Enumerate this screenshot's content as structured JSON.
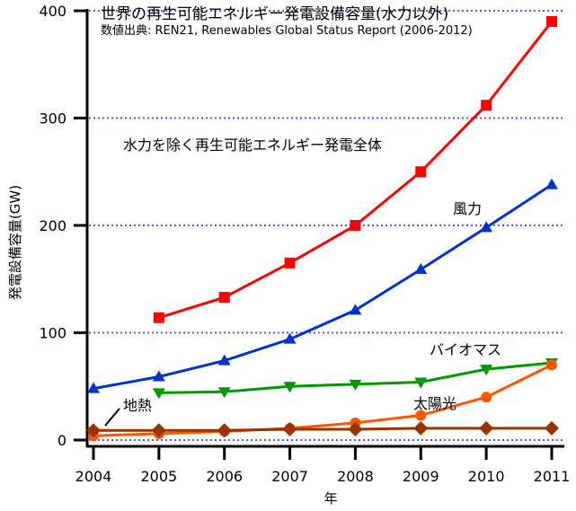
{
  "chart_data": {
    "type": "line",
    "title": "世界の再生可能エネルギー発電設備容量(水力以外)",
    "subtitle": "数値出典: REN21, Renewables Global Status Report (2006-2012)",
    "xlabel": "年",
    "ylabel": "発電設備容量(GW)",
    "xlim": [
      2004,
      2011
    ],
    "ylim": [
      0,
      400
    ],
    "x_ticks": [
      "2004",
      "2005",
      "2006",
      "2007",
      "2008",
      "2009",
      "2010",
      "2011"
    ],
    "y_ticks": [
      "0",
      "100",
      "200",
      "300",
      "400"
    ],
    "grid": "horizontal dotted",
    "series": [
      {
        "name": "水力を除く再生可能エネルギー発電全体",
        "color": "#ff0000",
        "marker": "square",
        "x": [
          2005,
          2006,
          2007,
          2008,
          2009,
          2010,
          2011
        ],
        "values": [
          114,
          133,
          165,
          200,
          250,
          312,
          390
        ]
      },
      {
        "name": "風力",
        "color": "#0033cc",
        "marker": "triangle-up",
        "x": [
          2004,
          2005,
          2006,
          2007,
          2008,
          2009,
          2010,
          2011
        ],
        "values": [
          48,
          59,
          74,
          94,
          121,
          159,
          198,
          238
        ]
      },
      {
        "name": "バイオマス",
        "color": "#009900",
        "marker": "triangle-down",
        "x": [
          2005,
          2006,
          2007,
          2008,
          2009,
          2010,
          2011
        ],
        "values": [
          44,
          45,
          50,
          52,
          54,
          66,
          72
        ]
      },
      {
        "name": "太陽光",
        "color": "#ff5500",
        "marker": "circle",
        "x": [
          2004,
          2005,
          2006,
          2007,
          2008,
          2009,
          2010,
          2011
        ],
        "values": [
          4,
          6,
          8,
          11,
          16,
          23,
          40,
          70
        ]
      },
      {
        "name": "地熱",
        "color": "#993300",
        "marker": "diamond",
        "x": [
          2004,
          2005,
          2006,
          2007,
          2008,
          2009,
          2010,
          2011
        ],
        "values": [
          9,
          9,
          9,
          10,
          10,
          11,
          11,
          11
        ]
      }
    ]
  }
}
